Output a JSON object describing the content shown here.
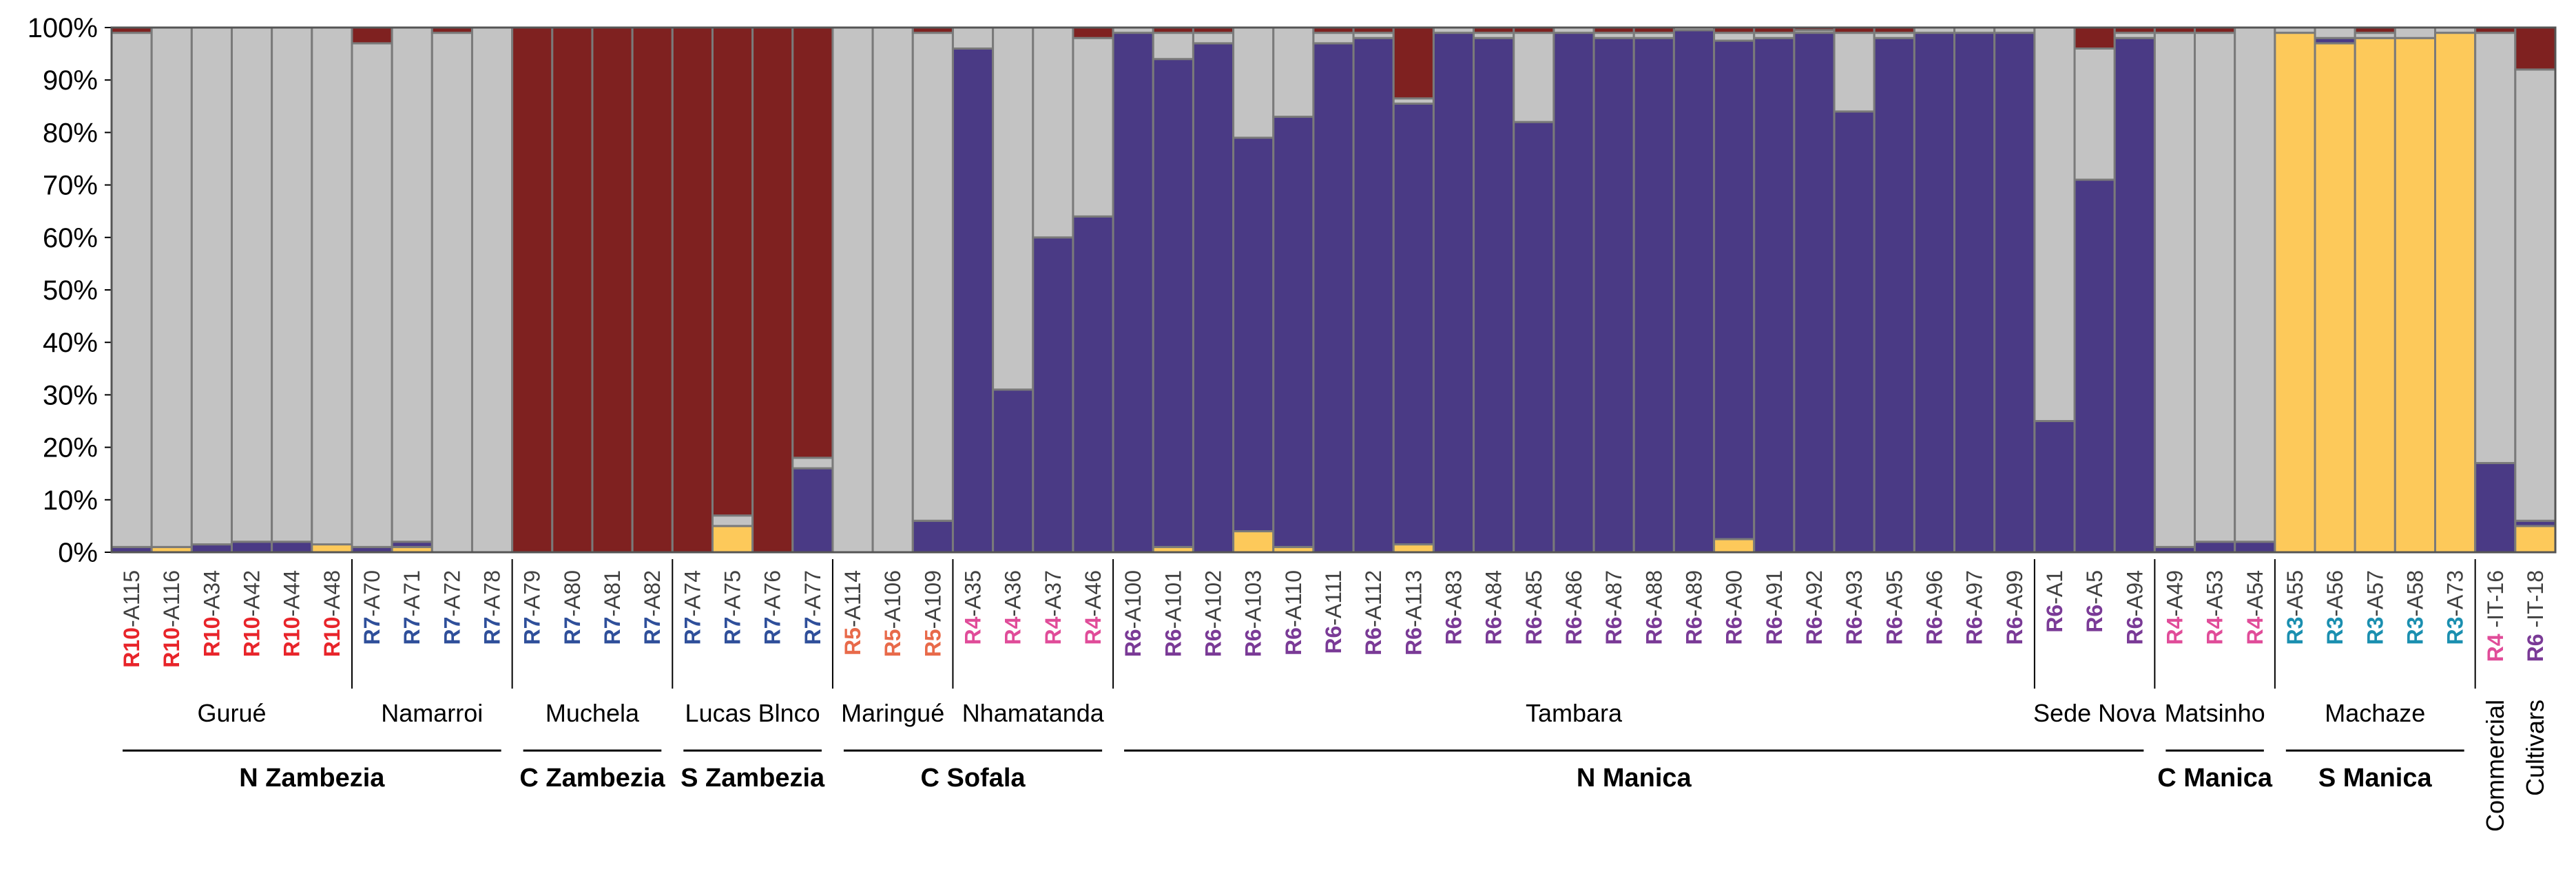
{
  "chart_data": {
    "type": "bar",
    "stacked": true,
    "ylim": [
      0,
      100
    ],
    "yticks": [
      "0%",
      "10%",
      "20%",
      "30%",
      "40%",
      "50%",
      "60%",
      "70%",
      "80%",
      "90%",
      "100%"
    ],
    "component_colors": {
      "red": "#7f2120",
      "grey": "#c3c3c3",
      "purple": "#4a3a85",
      "yellow": "#fdc95a"
    },
    "prefix_colors": {
      "R10": "#e8242a",
      "R7": "#2f4f9a",
      "R5": "#e86a4a",
      "R4": "#e04c99",
      "R6": "#7a3a96",
      "R3": "#1b8fb0"
    },
    "samples": [
      {
        "pre": "R10",
        "suf": "-A115",
        "v": {
          "yellow": 0,
          "purple": 1,
          "grey": 98,
          "red": 1
        }
      },
      {
        "pre": "R10",
        "suf": "-A116",
        "v": {
          "yellow": 1,
          "purple": 0,
          "grey": 99,
          "red": 0
        }
      },
      {
        "pre": "R10",
        "suf": "-A34",
        "v": {
          "yellow": 0,
          "purple": 1.5,
          "grey": 98.5,
          "red": 0
        }
      },
      {
        "pre": "R10",
        "suf": "-A42",
        "v": {
          "yellow": 0,
          "purple": 2,
          "grey": 98,
          "red": 0
        }
      },
      {
        "pre": "R10",
        "suf": "-A44",
        "v": {
          "yellow": 0,
          "purple": 2,
          "grey": 98,
          "red": 0
        }
      },
      {
        "pre": "R10",
        "suf": "-A48",
        "v": {
          "yellow": 1.5,
          "purple": 0,
          "grey": 98.5,
          "red": 0
        }
      },
      {
        "pre": "R7",
        "suf": "-A70",
        "v": {
          "yellow": 0,
          "purple": 1,
          "grey": 96,
          "red": 3
        }
      },
      {
        "pre": "R7",
        "suf": "-A71",
        "v": {
          "yellow": 1,
          "purple": 1,
          "grey": 98,
          "red": 0
        }
      },
      {
        "pre": "R7",
        "suf": "-A72",
        "v": {
          "yellow": 0,
          "purple": 0,
          "grey": 99,
          "red": 1
        }
      },
      {
        "pre": "R7",
        "suf": "-A78",
        "v": {
          "yellow": 0,
          "purple": 0,
          "grey": 100,
          "red": 0
        }
      },
      {
        "pre": "R7",
        "suf": "-A79",
        "v": {
          "yellow": 0,
          "purple": 0,
          "grey": 0,
          "red": 100
        }
      },
      {
        "pre": "R7",
        "suf": "-A80",
        "v": {
          "yellow": 0,
          "purple": 0,
          "grey": 0,
          "red": 100
        }
      },
      {
        "pre": "R7",
        "suf": "-A81",
        "v": {
          "yellow": 0,
          "purple": 0,
          "grey": 0,
          "red": 100
        }
      },
      {
        "pre": "R7",
        "suf": "-A82",
        "v": {
          "yellow": 0,
          "purple": 0,
          "grey": 0,
          "red": 100
        }
      },
      {
        "pre": "R7",
        "suf": "-A74",
        "v": {
          "yellow": 0,
          "purple": 0,
          "grey": 0,
          "red": 100
        }
      },
      {
        "pre": "R7",
        "suf": "-A75",
        "v": {
          "yellow": 5,
          "purple": 0,
          "grey": 2,
          "red": 93
        }
      },
      {
        "pre": "R7",
        "suf": "-A76",
        "v": {
          "yellow": 0,
          "purple": 0,
          "grey": 0,
          "red": 100
        }
      },
      {
        "pre": "R7",
        "suf": "-A77",
        "v": {
          "yellow": 0,
          "purple": 16,
          "grey": 2,
          "red": 82
        }
      },
      {
        "pre": "R5",
        "suf": "-A114",
        "v": {
          "yellow": 0,
          "purple": 0,
          "grey": 100,
          "red": 0
        }
      },
      {
        "pre": "R5",
        "suf": "-A106",
        "v": {
          "yellow": 0,
          "purple": 0,
          "grey": 100,
          "red": 0
        }
      },
      {
        "pre": "R5",
        "suf": "-A109",
        "v": {
          "yellow": 0,
          "purple": 6,
          "grey": 93,
          "red": 1
        }
      },
      {
        "pre": "R4",
        "suf": "-A35",
        "v": {
          "yellow": 0,
          "purple": 96,
          "grey": 4,
          "red": 0
        }
      },
      {
        "pre": "R4",
        "suf": "-A36",
        "v": {
          "yellow": 0,
          "purple": 31,
          "grey": 69,
          "red": 0
        }
      },
      {
        "pre": "R4",
        "suf": "-A37",
        "v": {
          "yellow": 0,
          "purple": 60,
          "grey": 40,
          "red": 0
        }
      },
      {
        "pre": "R4",
        "suf": "-A46",
        "v": {
          "yellow": 0,
          "purple": 64,
          "grey": 34,
          "red": 2
        }
      },
      {
        "pre": "R6",
        "suf": "-A100",
        "v": {
          "yellow": 0,
          "purple": 99,
          "grey": 1,
          "red": 0
        }
      },
      {
        "pre": "R6",
        "suf": "-A101",
        "v": {
          "yellow": 1,
          "purple": 93,
          "grey": 5,
          "red": 1
        }
      },
      {
        "pre": "R6",
        "suf": "-A102",
        "v": {
          "yellow": 0,
          "purple": 97,
          "grey": 2,
          "red": 1
        }
      },
      {
        "pre": "R6",
        "suf": "-A103",
        "v": {
          "yellow": 4,
          "purple": 75,
          "grey": 21,
          "red": 0
        }
      },
      {
        "pre": "R6",
        "suf": "-A110",
        "v": {
          "yellow": 1,
          "purple": 82,
          "grey": 17,
          "red": 0
        }
      },
      {
        "pre": "R6",
        "suf": "-A111",
        "v": {
          "yellow": 0,
          "purple": 97,
          "grey": 2,
          "red": 1
        }
      },
      {
        "pre": "R6",
        "suf": "-A112",
        "v": {
          "yellow": 0,
          "purple": 98,
          "grey": 1,
          "red": 1
        }
      },
      {
        "pre": "R6",
        "suf": "-A113",
        "v": {
          "yellow": 1.5,
          "purple": 84,
          "grey": 1,
          "red": 13.5
        }
      },
      {
        "pre": "R6",
        "suf": "-A83",
        "v": {
          "yellow": 0,
          "purple": 99,
          "grey": 1,
          "red": 0
        }
      },
      {
        "pre": "R6",
        "suf": "-A84",
        "v": {
          "yellow": 0,
          "purple": 98,
          "grey": 1,
          "red": 1
        }
      },
      {
        "pre": "R6",
        "suf": "-A85",
        "v": {
          "yellow": 0,
          "purple": 82,
          "grey": 17,
          "red": 1
        }
      },
      {
        "pre": "R6",
        "suf": "-A86",
        "v": {
          "yellow": 0,
          "purple": 99,
          "grey": 1,
          "red": 0
        }
      },
      {
        "pre": "R6",
        "suf": "-A87",
        "v": {
          "yellow": 0,
          "purple": 98,
          "grey": 1,
          "red": 1
        }
      },
      {
        "pre": "R6",
        "suf": "-A88",
        "v": {
          "yellow": 0,
          "purple": 98,
          "grey": 1,
          "red": 1
        }
      },
      {
        "pre": "R6",
        "suf": "-A89",
        "v": {
          "yellow": 0,
          "purple": 99.5,
          "grey": 0.5,
          "red": 0
        }
      },
      {
        "pre": "R6",
        "suf": "-A90",
        "v": {
          "yellow": 2.5,
          "purple": 95,
          "grey": 1.5,
          "red": 1
        }
      },
      {
        "pre": "R6",
        "suf": "-A91",
        "v": {
          "yellow": 0,
          "purple": 98,
          "grey": 1,
          "red": 1
        }
      },
      {
        "pre": "R6",
        "suf": "-A92",
        "v": {
          "yellow": 0,
          "purple": 99,
          "grey": 0.5,
          "red": 0.5
        }
      },
      {
        "pre": "R6",
        "suf": "-A93",
        "v": {
          "yellow": 0,
          "purple": 84,
          "grey": 15,
          "red": 1
        }
      },
      {
        "pre": "R6",
        "suf": "-A95",
        "v": {
          "yellow": 0,
          "purple": 98,
          "grey": 1,
          "red": 1
        }
      },
      {
        "pre": "R6",
        "suf": "-A96",
        "v": {
          "yellow": 0,
          "purple": 99,
          "grey": 1,
          "red": 0
        }
      },
      {
        "pre": "R6",
        "suf": "-A97",
        "v": {
          "yellow": 0,
          "purple": 99,
          "grey": 1,
          "red": 0
        }
      },
      {
        "pre": "R6",
        "suf": "-A99",
        "v": {
          "yellow": 0,
          "purple": 99,
          "grey": 1,
          "red": 0
        }
      },
      {
        "pre": "R6",
        "suf": "-A1",
        "v": {
          "yellow": 0,
          "purple": 25,
          "grey": 75,
          "red": 0
        }
      },
      {
        "pre": "R6",
        "suf": "-A5",
        "v": {
          "yellow": 0,
          "purple": 71,
          "grey": 25,
          "red": 4
        }
      },
      {
        "pre": "R6",
        "suf": "-A94",
        "v": {
          "yellow": 0,
          "purple": 98,
          "grey": 1,
          "red": 1
        }
      },
      {
        "pre": "R4",
        "suf": "-A49",
        "v": {
          "yellow": 0,
          "purple": 1,
          "grey": 98,
          "red": 1
        }
      },
      {
        "pre": "R4",
        "suf": "-A53",
        "v": {
          "yellow": 0,
          "purple": 2,
          "grey": 97,
          "red": 1
        }
      },
      {
        "pre": "R4",
        "suf": "-A54",
        "v": {
          "yellow": 0,
          "purple": 2,
          "grey": 98,
          "red": 0
        }
      },
      {
        "pre": "R3",
        "suf": "-A55",
        "v": {
          "yellow": 99,
          "purple": 0,
          "grey": 1,
          "red": 0
        }
      },
      {
        "pre": "R3",
        "suf": "-A56",
        "v": {
          "yellow": 97,
          "purple": 1,
          "grey": 2,
          "red": 0
        }
      },
      {
        "pre": "R3",
        "suf": "-A57",
        "v": {
          "yellow": 98,
          "purple": 0,
          "grey": 1,
          "red": 1
        }
      },
      {
        "pre": "R3",
        "suf": "-A58",
        "v": {
          "yellow": 98,
          "purple": 0,
          "grey": 2,
          "red": 0
        }
      },
      {
        "pre": "R3",
        "suf": "-A73",
        "v": {
          "yellow": 99,
          "purple": 0,
          "grey": 1,
          "red": 0
        }
      },
      {
        "pre": "R4",
        "suf": " -IT-16",
        "v": {
          "yellow": 0,
          "purple": 17,
          "grey": 82,
          "red": 1
        }
      },
      {
        "pre": "R6",
        "suf": " -IT-18",
        "v": {
          "yellow": 5,
          "purple": 1,
          "grey": 86,
          "red": 8
        }
      }
    ],
    "locations": [
      {
        "label": "Gurué",
        "start": 0,
        "end": 5
      },
      {
        "label": "Namarroi",
        "start": 6,
        "end": 9
      },
      {
        "label": "Muchela",
        "start": 10,
        "end": 13
      },
      {
        "label": "Lucas Blnco",
        "start": 14,
        "end": 17
      },
      {
        "label": "Maringué",
        "start": 18,
        "end": 20
      },
      {
        "label": "Nhamatanda",
        "start": 21,
        "end": 24
      },
      {
        "label": "Tambara",
        "start": 25,
        "end": 47
      },
      {
        "label": "Sede Nova",
        "start": 48,
        "end": 50
      },
      {
        "label": "Matsinho",
        "start": 51,
        "end": 53
      },
      {
        "label": "Machaze",
        "start": 54,
        "end": 58
      }
    ],
    "regions": [
      {
        "label": "N Zambezia",
        "start": 0,
        "end": 9
      },
      {
        "label": "C Zambezia",
        "start": 10,
        "end": 13
      },
      {
        "label": "S Zambezia",
        "start": 14,
        "end": 17
      },
      {
        "label": "C Sofala",
        "start": 18,
        "end": 24
      },
      {
        "label": "N Manica",
        "start": 25,
        "end": 50
      },
      {
        "label": "C Manica",
        "start": 51,
        "end": 53
      },
      {
        "label": "S Manica",
        "start": 54,
        "end": 58
      }
    ],
    "group_separators_after": [
      5,
      9,
      13,
      17,
      20,
      24,
      47,
      50,
      53,
      58
    ],
    "commercial": {
      "label1": "Commercial",
      "label2": "Cultivars",
      "start": 59,
      "end": 60
    }
  }
}
